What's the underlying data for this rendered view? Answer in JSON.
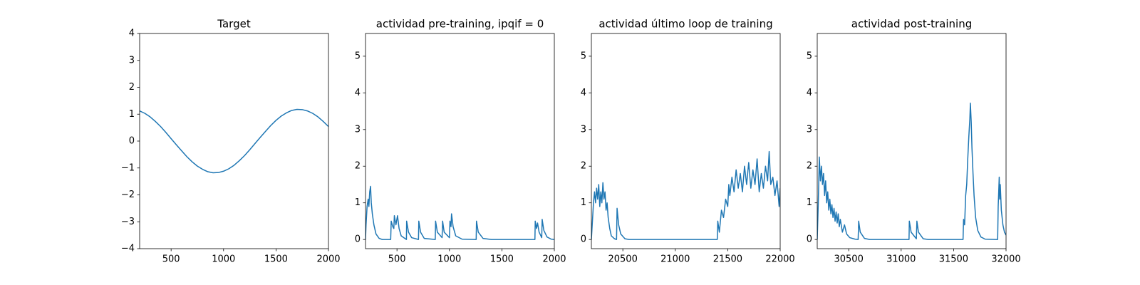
{
  "chart_data": [
    {
      "type": "line",
      "title": "Target",
      "color": "#1f77b4",
      "x": [
        200,
        250,
        300,
        350,
        400,
        450,
        500,
        550,
        600,
        650,
        700,
        750,
        800,
        850,
        900,
        950,
        1000,
        1050,
        1100,
        1150,
        1200,
        1250,
        1300,
        1350,
        1400,
        1450,
        1500,
        1550,
        1600,
        1650,
        1700,
        1750,
        1800,
        1850,
        1900,
        1950,
        2000
      ],
      "values": [
        1.12,
        1.03,
        0.9,
        0.73,
        0.54,
        0.32,
        0.09,
        -0.14,
        -0.36,
        -0.58,
        -0.77,
        -0.93,
        -1.05,
        -1.14,
        -1.18,
        -1.17,
        -1.12,
        -1.03,
        -0.9,
        -0.73,
        -0.54,
        -0.32,
        -0.09,
        0.14,
        0.36,
        0.58,
        0.77,
        0.93,
        1.05,
        1.14,
        1.18,
        1.17,
        1.12,
        1.03,
        0.9,
        0.73,
        0.54
      ],
      "xlim": [
        200,
        2000
      ],
      "xticks": [
        500,
        1000,
        1500,
        2000
      ],
      "ylim": [
        -4,
        4
      ],
      "yticks": [
        {
          "value": -4,
          "label": "−4"
        },
        {
          "value": -3,
          "label": "−3"
        },
        {
          "value": -2,
          "label": "−2"
        },
        {
          "value": -1,
          "label": "−1"
        },
        0,
        1,
        2,
        3,
        4
      ]
    },
    {
      "type": "line",
      "title": "actividad pre-training, ipqif = 0",
      "color": "#1f77b4",
      "x": [
        200,
        205,
        215,
        225,
        232,
        240,
        248,
        255,
        265,
        280,
        300,
        330,
        360,
        440,
        445,
        460,
        470,
        475,
        490,
        505,
        520,
        540,
        580,
        590,
        592,
        610,
        640,
        705,
        708,
        725,
        760,
        865,
        868,
        885,
        930,
        935,
        950,
        1000,
        1005,
        1015,
        1020,
        1035,
        1060,
        1120,
        1255,
        1258,
        1275,
        1320,
        1400,
        1815,
        1818,
        1830,
        1840,
        1855,
        1880,
        1884,
        1900,
        1930,
        1970,
        2000
      ],
      "values": [
        0,
        0.4,
        0.9,
        1.1,
        0.9,
        1.3,
        1.45,
        1.0,
        0.7,
        0.4,
        0.15,
        0.03,
        0,
        0,
        0.5,
        0.35,
        0.3,
        0.65,
        0.4,
        0.65,
        0.3,
        0.1,
        0.02,
        0,
        0.5,
        0.2,
        0.05,
        0,
        0.5,
        0.2,
        0.03,
        0,
        0.5,
        0.2,
        0.05,
        0.5,
        0.2,
        0.05,
        0.5,
        0.35,
        0.7,
        0.35,
        0.1,
        0.01,
        0,
        0.5,
        0.2,
        0.03,
        0,
        0,
        0.5,
        0.3,
        0.45,
        0.2,
        0.05,
        0.55,
        0.25,
        0.07,
        0.01,
        0
      ],
      "xlim": [
        200,
        2000
      ],
      "xticks": [
        500,
        1000,
        1500,
        2000
      ],
      "ylim": [
        -0.25,
        5.62
      ],
      "yticks": [
        0,
        1,
        2,
        3,
        4,
        5
      ]
    },
    {
      "type": "line",
      "title": "actividad último loop de training",
      "color": "#1f77b4",
      "x": [
        20200,
        20210,
        20220,
        20230,
        20240,
        20250,
        20260,
        20270,
        20280,
        20290,
        20300,
        20310,
        20320,
        20330,
        20340,
        20350,
        20360,
        20375,
        20390,
        20420,
        20440,
        20445,
        20460,
        20480,
        20520,
        20560,
        21400,
        21405,
        21420,
        21440,
        21460,
        21480,
        21500,
        21510,
        21520,
        21540,
        21560,
        21580,
        21600,
        21620,
        21640,
        21660,
        21680,
        21700,
        21720,
        21740,
        21760,
        21780,
        21800,
        21820,
        21840,
        21860,
        21880,
        21895,
        21910,
        21930,
        21950,
        21970,
        21990,
        22000
      ],
      "values": [
        0,
        0.5,
        1.0,
        1.3,
        1.0,
        1.4,
        1.1,
        1.5,
        0.9,
        1.3,
        1.0,
        1.55,
        1.1,
        1.3,
        0.8,
        1.0,
        0.6,
        0.3,
        0.1,
        0.02,
        0,
        0.85,
        0.4,
        0.15,
        0.02,
        0,
        0,
        0.5,
        0.2,
        0.8,
        0.6,
        1.1,
        0.9,
        1.5,
        1.2,
        1.7,
        1.3,
        1.9,
        1.4,
        1.8,
        1.3,
        2.0,
        1.5,
        2.1,
        1.4,
        1.9,
        1.5,
        2.2,
        1.3,
        1.8,
        1.4,
        2.0,
        1.6,
        2.4,
        1.5,
        1.7,
        1.2,
        1.6,
        0.9,
        1.4
      ],
      "xlim": [
        20200,
        22000
      ],
      "xticks": [
        20500,
        21000,
        21500,
        22000
      ],
      "ylim": [
        -0.25,
        5.62
      ],
      "yticks": [
        0,
        1,
        2,
        3,
        4,
        5
      ]
    },
    {
      "type": "line",
      "title": "actividad post-training",
      "color": "#1f77b4",
      "x": [
        30200,
        30210,
        30220,
        30230,
        30240,
        30250,
        30260,
        30270,
        30280,
        30290,
        30300,
        30310,
        30320,
        30330,
        30340,
        30350,
        30360,
        30370,
        30380,
        30390,
        30400,
        30410,
        30420,
        30440,
        30460,
        30480,
        30510,
        30560,
        30590,
        30595,
        30610,
        30650,
        30700,
        31075,
        31078,
        31095,
        31145,
        31150,
        31165,
        31210,
        31260,
        31590,
        31595,
        31605,
        31615,
        31625,
        31635,
        31645,
        31655,
        31660,
        31668,
        31675,
        31685,
        31695,
        31710,
        31730,
        31760,
        31800,
        31920,
        31925,
        31935,
        31940,
        31945,
        31955,
        31970,
        31985,
        32000
      ],
      "values": [
        0,
        1.0,
        2.25,
        1.6,
        2.0,
        1.5,
        1.8,
        1.2,
        1.6,
        1.0,
        1.3,
        0.8,
        1.1,
        0.7,
        0.95,
        0.6,
        0.85,
        0.5,
        0.75,
        0.45,
        0.7,
        0.35,
        0.55,
        0.2,
        0.4,
        0.15,
        0.05,
        0.01,
        0,
        0.5,
        0.2,
        0.03,
        0,
        0,
        0.5,
        0.2,
        0.02,
        0.5,
        0.2,
        0.02,
        0,
        0,
        0.55,
        0.4,
        1.2,
        1.5,
        2.2,
        2.8,
        3.3,
        3.72,
        3.2,
        2.5,
        1.8,
        1.2,
        0.6,
        0.25,
        0.07,
        0.01,
        0,
        0.9,
        1.7,
        1.1,
        1.5,
        0.8,
        0.4,
        0.2,
        0.12
      ],
      "xlim": [
        30200,
        32000
      ],
      "xticks": [
        30500,
        31000,
        31500,
        32000
      ],
      "ylim": [
        -0.25,
        5.62
      ],
      "yticks": [
        0,
        1,
        2,
        3,
        4,
        5
      ]
    }
  ]
}
